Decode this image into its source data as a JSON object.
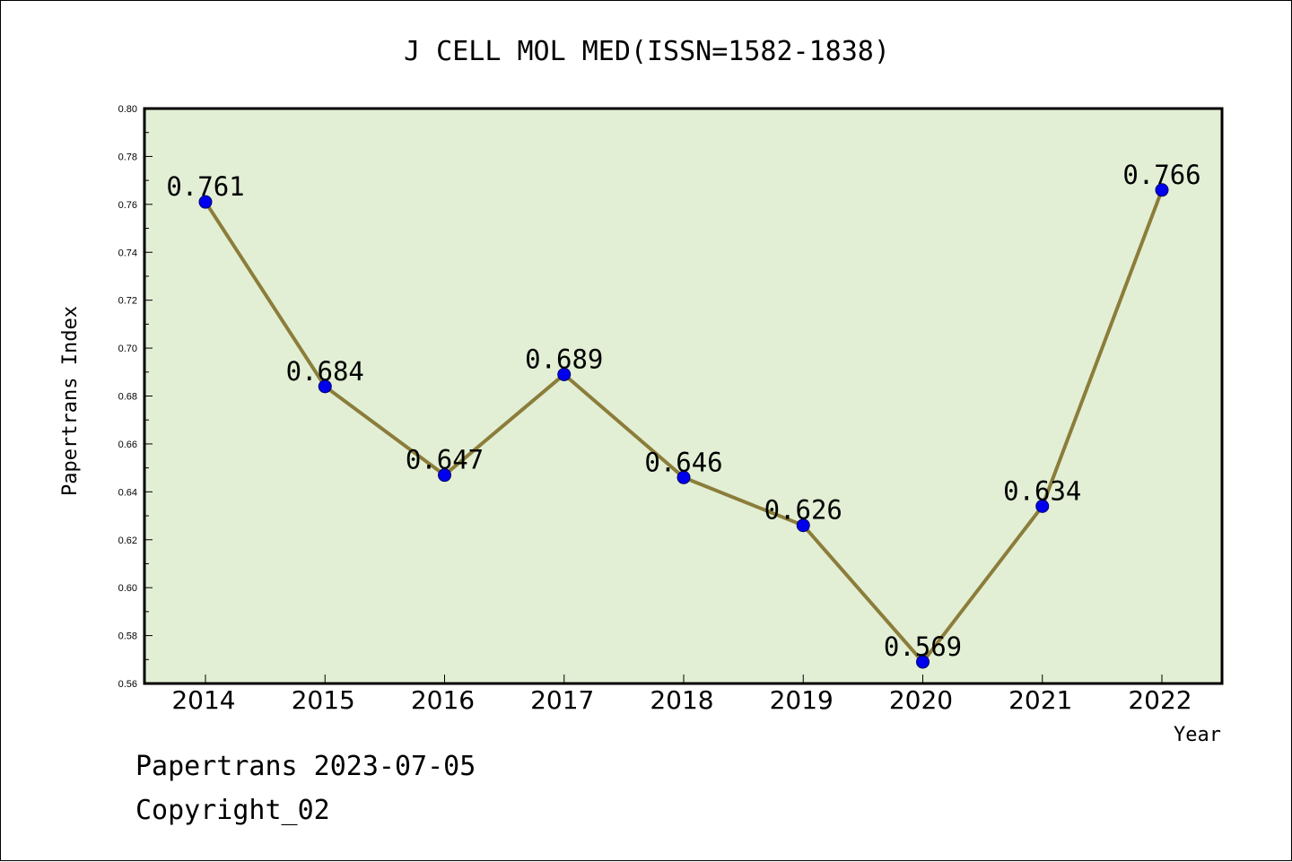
{
  "chart_data": {
    "type": "line",
    "title": "J CELL MOL MED(ISSN=1582-1838)",
    "xlabel": "Year",
    "ylabel": "Papertrans Index",
    "categories": [
      "2014",
      "2015",
      "2016",
      "2017",
      "2018",
      "2019",
      "2020",
      "2021",
      "2022"
    ],
    "values": [
      0.761,
      0.684,
      0.647,
      0.689,
      0.646,
      0.626,
      0.569,
      0.634,
      0.766
    ],
    "data_labels": [
      "0.761",
      "0.684",
      "0.647",
      "0.689",
      "0.646",
      "0.626",
      "0.569",
      "0.634",
      "0.766"
    ],
    "ylim": [
      0.56,
      0.8
    ],
    "y_ticks": [
      "0.56",
      "0.58",
      "0.60",
      "0.62",
      "0.64",
      "0.66",
      "0.68",
      "0.70",
      "0.72",
      "0.74",
      "0.76",
      "0.78",
      "0.80"
    ],
    "grid": false,
    "legend": "none",
    "colors": {
      "plot_background": "#e2efd5",
      "line": "#8b7d3a",
      "marker": "#0000ee",
      "marker_edge": "#000066",
      "axes": "#000000"
    }
  },
  "footer": {
    "line1": "Papertrans 2023-07-05",
    "line2": "Copyright_02"
  }
}
